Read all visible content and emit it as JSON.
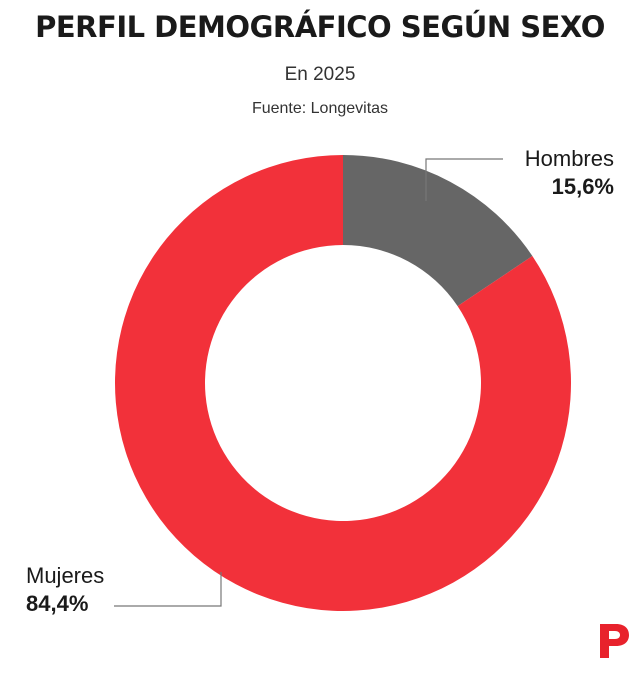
{
  "header": {
    "title": "PERFIL DEMOGRÁFICO SEGÚN SEXO",
    "subtitle": "En 2025",
    "source": "Fuente: Longevitas"
  },
  "colors": {
    "mujeres": "#f2313a",
    "hombres": "#666666",
    "brand": "#e8222c"
  },
  "chart_data": {
    "type": "pie",
    "title": "PERFIL DEMOGRÁFICO SEGÚN SEXO",
    "subtitle": "En 2025",
    "donut": true,
    "slices": [
      {
        "label": "Hombres",
        "value": 15.6,
        "value_label": "15,6%",
        "color": "#666666"
      },
      {
        "label": "Mujeres",
        "value": 84.4,
        "value_label": "84,4%",
        "color": "#f2313a"
      }
    ]
  },
  "brand": {
    "logo_icon": "brand-p-logo-icon"
  }
}
